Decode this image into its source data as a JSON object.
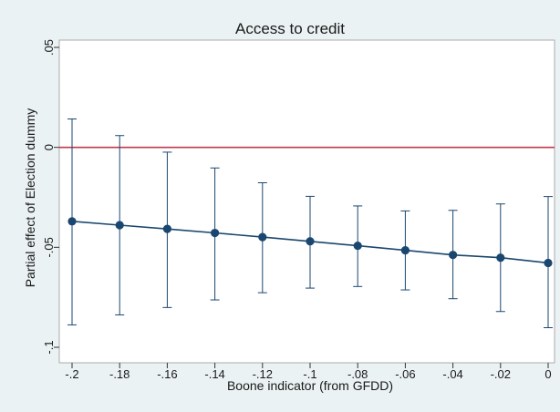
{
  "chart_data": {
    "type": "scatter",
    "title": "Access to credit",
    "xlabel": "Boone indicator (from GFDD)",
    "ylabel": "Partial effect of Election dummy",
    "xlim": [
      -0.2,
      0
    ],
    "ylim": [
      -0.1,
      0.05
    ],
    "x_ticks": [
      -0.2,
      -0.18,
      -0.16,
      -0.14,
      -0.12,
      -0.1,
      -0.08,
      -0.06,
      -0.04,
      -0.02,
      0
    ],
    "x_tick_labels": [
      "-.2",
      "-.18",
      "-.16",
      "-.14",
      "-.12",
      "-.1",
      "-.08",
      "-.06",
      "-.04",
      "-.02",
      "0"
    ],
    "y_ticks": [
      -0.1,
      -0.05,
      0,
      0.05
    ],
    "y_tick_labels": [
      "-.1",
      "-.05",
      "0",
      ".05"
    ],
    "reference_line_y": 0,
    "grid": false,
    "series": [
      {
        "x": [
          -0.2,
          -0.18,
          -0.16,
          -0.14,
          -0.12,
          -0.1,
          -0.08,
          -0.06,
          -0.04,
          -0.02,
          0
        ],
        "y": [
          -0.037,
          -0.0389,
          -0.0408,
          -0.0428,
          -0.0449,
          -0.047,
          -0.0492,
          -0.0515,
          -0.0538,
          -0.0552,
          -0.0578
        ],
        "ci_low": [
          -0.0888,
          -0.0838,
          -0.0801,
          -0.0763,
          -0.0727,
          -0.0704,
          -0.0696,
          -0.0713,
          -0.0757,
          -0.0821,
          -0.0902
        ],
        "ci_high": [
          0.0142,
          0.0059,
          -0.0024,
          -0.0103,
          -0.0177,
          -0.0245,
          -0.0293,
          -0.0318,
          -0.0315,
          -0.0283,
          -0.0246
        ]
      }
    ],
    "colors": {
      "estimate": "#1a476f",
      "reference": "#c0394a",
      "background": "#eaf2f3",
      "plot": "#ffffff"
    }
  }
}
